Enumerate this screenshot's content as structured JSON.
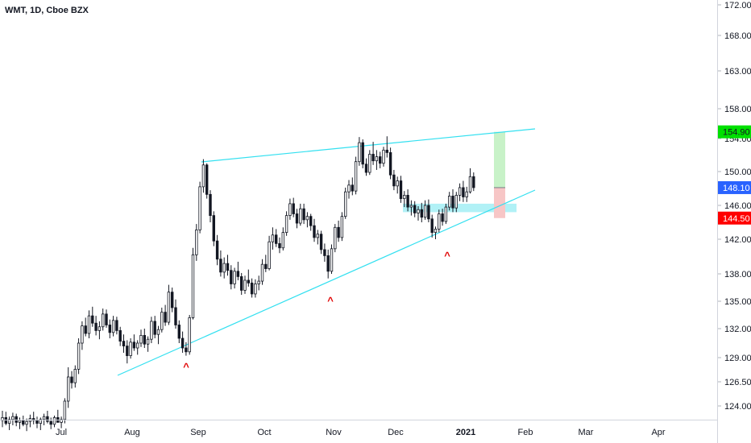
{
  "symbol": "WMT, 1D, Cboe BZX",
  "chart_data": {
    "type": "candlestick",
    "y_ticks": [
      "172.00",
      "168.00",
      "163.00",
      "158.00",
      "154.00",
      "150.00",
      "146.00",
      "142.00",
      "138.00",
      "135.00",
      "132.00",
      "129.00",
      "126.50",
      "124.00"
    ],
    "x_ticks": [
      "Jul",
      "Aug",
      "Sep",
      "Oct",
      "Nov",
      "Dec",
      "2021",
      "Feb",
      "Mar",
      "Apr"
    ],
    "price_badges": [
      {
        "label": "154.90",
        "value": 154.9,
        "color": "#00e000",
        "text_color": "#131722"
      },
      {
        "label": "148.10",
        "value": 148.1,
        "color": "#2962ff",
        "text_color": "#ffffff"
      },
      {
        "label": "144.50",
        "value": 144.5,
        "color": "#ff0000",
        "text_color": "#ffffff"
      }
    ],
    "markers": [
      "^",
      "^",
      "^"
    ],
    "colors": {
      "trendline": "#33e0f0",
      "up_candle": "#ffffff",
      "down_candle": "#131722",
      "target_zone": "#c8f2c8",
      "stop_zone": "#f7c6c6",
      "support_zone": "#a8f0f5",
      "marker": "#e00000"
    },
    "candles": [
      [
        122.5,
        123.5,
        121.8,
        122.8
      ],
      [
        122.8,
        123.4,
        122.0,
        122.2
      ],
      [
        122.2,
        122.9,
        121.5,
        122.6
      ],
      [
        122.6,
        123.3,
        122.0,
        122.9
      ],
      [
        122.9,
        123.2,
        121.9,
        122.3
      ],
      [
        122.3,
        122.8,
        121.6,
        122.5
      ],
      [
        122.5,
        123.0,
        121.9,
        122.1
      ],
      [
        122.1,
        122.7,
        121.4,
        122.4
      ],
      [
        122.4,
        123.1,
        121.8,
        122.7
      ],
      [
        122.7,
        123.4,
        122.1,
        122.5
      ],
      [
        122.5,
        122.9,
        121.7,
        122.2
      ],
      [
        122.2,
        122.8,
        121.5,
        122.6
      ],
      [
        122.6,
        123.2,
        122.0,
        122.9
      ],
      [
        122.9,
        123.5,
        122.2,
        122.4
      ],
      [
        122.4,
        122.8,
        121.6,
        122.1
      ],
      [
        122.1,
        123.0,
        121.8,
        122.8
      ],
      [
        122.8,
        123.6,
        122.3,
        122.3
      ],
      [
        122.3,
        122.9,
        121.7,
        122.6
      ],
      [
        122.6,
        124.8,
        122.2,
        124.5
      ],
      [
        124.5,
        128.0,
        123.8,
        127.0
      ],
      [
        127.0,
        127.6,
        125.8,
        126.4
      ],
      [
        126.4,
        128.2,
        125.9,
        127.8
      ],
      [
        127.8,
        131.0,
        127.3,
        130.5
      ],
      [
        130.5,
        132.8,
        129.8,
        132.3
      ],
      [
        132.3,
        133.2,
        131.2,
        131.5
      ],
      [
        131.5,
        134.0,
        131.0,
        133.4
      ],
      [
        133.4,
        134.4,
        132.2,
        132.6
      ],
      [
        132.6,
        133.4,
        131.3,
        131.8
      ],
      [
        131.8,
        132.8,
        130.9,
        132.2
      ],
      [
        132.2,
        134.2,
        131.8,
        133.6
      ],
      [
        133.6,
        134.1,
        132.1,
        132.4
      ],
      [
        132.4,
        133.0,
        131.0,
        131.6
      ],
      [
        131.6,
        133.4,
        131.2,
        132.9
      ],
      [
        132.9,
        133.3,
        131.4,
        131.8
      ],
      [
        131.8,
        132.2,
        130.2,
        130.7
      ],
      [
        130.7,
        131.4,
        129.5,
        130.2
      ],
      [
        130.2,
        130.8,
        128.4,
        129.2
      ],
      [
        129.2,
        131.0,
        128.9,
        130.6
      ],
      [
        130.6,
        131.4,
        129.7,
        130.0
      ],
      [
        130.0,
        130.8,
        129.3,
        130.5
      ],
      [
        130.5,
        131.9,
        130.1,
        131.3
      ],
      [
        131.3,
        132.0,
        130.0,
        130.4
      ],
      [
        130.4,
        131.2,
        129.6,
        130.9
      ],
      [
        130.9,
        133.3,
        130.5,
        132.8
      ],
      [
        132.8,
        133.4,
        131.0,
        131.4
      ],
      [
        131.4,
        132.3,
        130.4,
        131.9
      ],
      [
        131.9,
        134.3,
        131.6,
        133.8
      ],
      [
        133.8,
        134.6,
        132.3,
        132.7
      ],
      [
        132.7,
        136.8,
        132.4,
        136.0
      ],
      [
        136.0,
        136.5,
        133.8,
        134.3
      ],
      [
        134.3,
        135.2,
        132.0,
        132.4
      ],
      [
        132.4,
        132.9,
        130.5,
        131.0
      ],
      [
        131.0,
        131.7,
        129.5,
        130.0
      ],
      [
        130.0,
        130.6,
        129.2,
        129.6
      ],
      [
        129.6,
        133.5,
        129.3,
        133.2
      ],
      [
        133.2,
        141.0,
        133.0,
        140.2
      ],
      [
        140.2,
        143.8,
        139.5,
        143.1
      ],
      [
        143.1,
        148.8,
        142.7,
        148.2
      ],
      [
        148.2,
        151.5,
        147.5,
        150.8
      ],
      [
        150.8,
        151.0,
        146.8,
        147.3
      ],
      [
        147.3,
        147.8,
        144.0,
        144.8
      ],
      [
        144.8,
        145.3,
        141.2,
        141.8
      ],
      [
        141.8,
        142.5,
        139.0,
        139.7
      ],
      [
        139.7,
        140.7,
        137.7,
        138.2
      ],
      [
        138.2,
        139.9,
        137.5,
        139.2
      ],
      [
        139.2,
        140.2,
        137.8,
        138.4
      ],
      [
        138.4,
        139.0,
        136.3,
        136.9
      ],
      [
        136.9,
        138.7,
        136.4,
        138.3
      ],
      [
        138.3,
        139.4,
        137.3,
        137.7
      ],
      [
        137.7,
        138.1,
        135.7,
        136.2
      ],
      [
        136.2,
        137.8,
        135.8,
        137.3
      ],
      [
        137.3,
        138.5,
        136.6,
        137.0
      ],
      [
        137.0,
        137.5,
        135.4,
        135.8
      ],
      [
        135.8,
        137.4,
        135.4,
        136.9
      ],
      [
        136.9,
        137.8,
        136.2,
        137.2
      ],
      [
        137.2,
        139.7,
        136.8,
        139.1
      ],
      [
        139.1,
        140.2,
        138.2,
        138.6
      ],
      [
        138.6,
        142.4,
        138.4,
        141.7
      ],
      [
        141.7,
        143.4,
        140.8,
        142.5
      ],
      [
        142.5,
        143.2,
        141.1,
        141.5
      ],
      [
        141.5,
        142.2,
        140.4,
        141.0
      ],
      [
        141.0,
        143.4,
        140.7,
        142.8
      ],
      [
        142.8,
        145.3,
        142.4,
        144.8
      ],
      [
        144.8,
        146.8,
        144.3,
        146.2
      ],
      [
        146.2,
        146.9,
        144.6,
        145.0
      ],
      [
        145.0,
        145.6,
        143.3,
        143.9
      ],
      [
        143.9,
        146.2,
        143.6,
        145.6
      ],
      [
        145.6,
        146.2,
        143.8,
        144.3
      ],
      [
        144.3,
        145.2,
        143.4,
        144.7
      ],
      [
        144.7,
        145.0,
        143.0,
        143.6
      ],
      [
        143.6,
        144.4,
        141.7,
        142.2
      ],
      [
        142.2,
        143.1,
        141.4,
        142.6
      ],
      [
        142.6,
        143.0,
        140.3,
        140.8
      ],
      [
        140.8,
        141.5,
        139.4,
        140.1
      ],
      [
        140.1,
        140.8,
        137.5,
        138.3
      ],
      [
        138.3,
        141.4,
        138.0,
        140.9
      ],
      [
        140.9,
        143.8,
        140.5,
        143.4
      ],
      [
        143.4,
        144.2,
        141.7,
        142.2
      ],
      [
        142.2,
        145.2,
        141.8,
        144.7
      ],
      [
        144.7,
        148.1,
        144.4,
        147.6
      ],
      [
        147.6,
        149.0,
        146.8,
        148.4
      ],
      [
        148.4,
        149.3,
        147.2,
        147.7
      ],
      [
        147.7,
        151.8,
        147.3,
        151.2
      ],
      [
        151.2,
        154.2,
        150.7,
        153.5
      ],
      [
        153.5,
        153.9,
        150.4,
        150.9
      ],
      [
        150.9,
        151.6,
        149.5,
        149.9
      ],
      [
        149.9,
        152.6,
        149.6,
        152.1
      ],
      [
        152.1,
        153.6,
        150.8,
        151.3
      ],
      [
        151.3,
        152.6,
        150.2,
        151.8
      ],
      [
        151.8,
        152.4,
        150.4,
        151.0
      ],
      [
        151.0,
        153.0,
        150.6,
        152.6
      ],
      [
        152.6,
        154.3,
        151.7,
        152.3
      ],
      [
        152.3,
        152.9,
        149.1,
        149.6
      ],
      [
        149.6,
        150.2,
        147.8,
        148.3
      ],
      [
        148.3,
        149.4,
        147.4,
        148.9
      ],
      [
        148.9,
        149.5,
        146.3,
        146.8
      ],
      [
        146.8,
        147.7,
        145.8,
        147.2
      ],
      [
        147.2,
        147.9,
        145.3,
        145.8
      ],
      [
        145.8,
        146.6,
        144.8,
        146.0
      ],
      [
        146.0,
        146.5,
        144.6,
        145.1
      ],
      [
        145.1,
        145.9,
        144.2,
        145.5
      ],
      [
        145.5,
        146.3,
        144.0,
        144.6
      ],
      [
        144.6,
        146.6,
        144.3,
        146.0
      ],
      [
        146.0,
        146.7,
        144.0,
        144.4
      ],
      [
        144.4,
        144.9,
        142.2,
        142.8
      ],
      [
        142.8,
        143.5,
        142.0,
        143.2
      ],
      [
        143.2,
        145.5,
        142.8,
        145.0
      ],
      [
        145.0,
        145.6,
        143.6,
        144.1
      ],
      [
        144.1,
        146.2,
        143.8,
        145.8
      ],
      [
        145.8,
        147.6,
        145.4,
        147.1
      ],
      [
        147.1,
        147.9,
        145.2,
        145.7
      ],
      [
        145.7,
        147.6,
        145.2,
        147.2
      ],
      [
        147.2,
        148.6,
        146.5,
        148.1
      ],
      [
        148.1,
        148.9,
        146.4,
        147.0
      ],
      [
        147.0,
        148.2,
        146.4,
        147.6
      ],
      [
        147.6,
        150.4,
        147.4,
        149.4
      ],
      [
        149.4,
        149.9,
        147.7,
        148.1
      ]
    ]
  }
}
